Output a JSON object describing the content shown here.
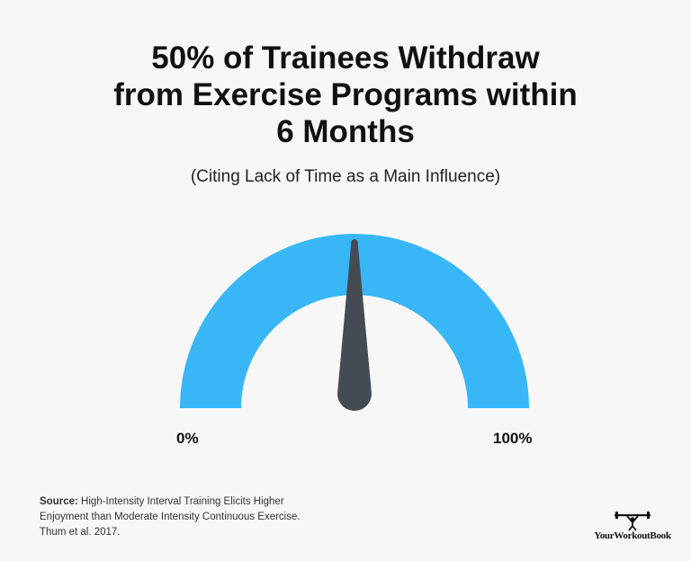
{
  "chart_data": {
    "type": "gauge",
    "title_lines": [
      "50% of Trainees Withdraw",
      "from Exercise Programs within",
      "6 Months"
    ],
    "subtitle": "(Citing Lack of Time as a Main Influence)",
    "value": 50,
    "min": 0,
    "max": 100,
    "min_label": "0%",
    "max_label": "100%",
    "colors": {
      "arc": "#38b6f6",
      "needle": "#454b52",
      "background": "#f7f7f7"
    }
  },
  "source": {
    "label": "Source:",
    "lines": [
      "High-Intensity Interval Training Elicits Higher",
      "Enjoyment than Moderate Intensity Continuous Exercise.",
      "Thum et al. 2017."
    ]
  },
  "brand": {
    "name": "YourWorkoutBook",
    "logo_icon": "weightlifter-icon"
  }
}
